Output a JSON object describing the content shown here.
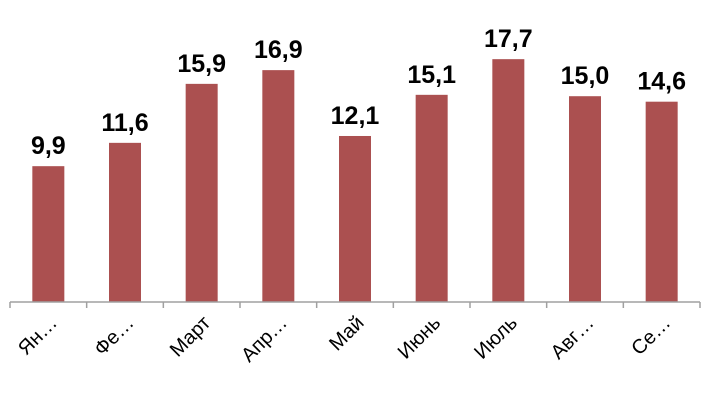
{
  "chart_data": {
    "type": "bar",
    "title": "",
    "xlabel": "",
    "ylabel": "",
    "categories": [
      "Ян…",
      "Фе…",
      "Март",
      "Апр…",
      "Май",
      "Июнь",
      "Июль",
      "Авг…",
      "Се…"
    ],
    "values": [
      9.9,
      11.6,
      15.9,
      16.9,
      12.1,
      15.1,
      17.7,
      15.0,
      14.6
    ],
    "data_labels": [
      "9,9",
      "11,6",
      "15,9",
      "16,9",
      "12,1",
      "15,1",
      "17,7",
      "15,0",
      "14,6"
    ],
    "ylim": [
      0,
      20.7
    ],
    "grid": false,
    "legend": "none",
    "colors": {
      "bar": "#ab5050",
      "axis": "#a0a0a0"
    }
  }
}
